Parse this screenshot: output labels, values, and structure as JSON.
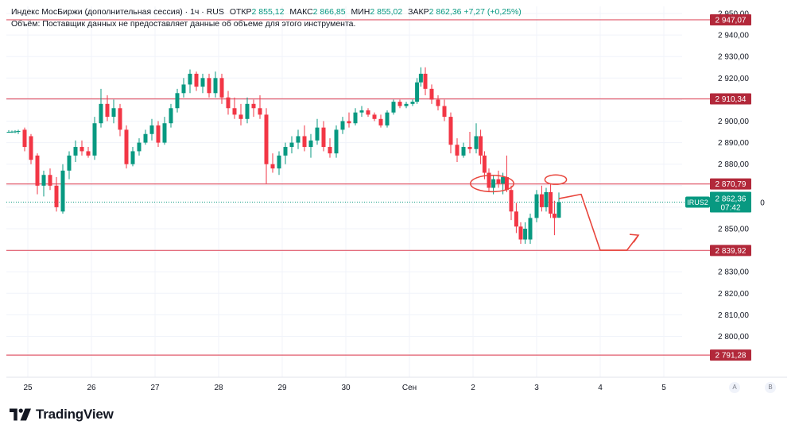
{
  "legend": {
    "title": "Индекс МосБиржи (дополнительная сессия) · 1ч · RUS",
    "open_label": "ОТКР",
    "open": "2 855,12",
    "high_label": "МАКС",
    "high": "2 866,85",
    "low_label": "МИН",
    "low": "2 855,02",
    "close_label": "ЗАКР",
    "close": "2 862,36",
    "change": "+7,27 (+0,25%)",
    "volume_note": "Объём: Поставщик данных не предоставляет данные об объеме для этого инструмента."
  },
  "current_price": {
    "symbol": "IRUS2",
    "value": "2 862,36",
    "countdown": "07:42",
    "extra": "0"
  },
  "brand": "TradingView",
  "scale_buttons": [
    "A",
    "B"
  ],
  "colors": {
    "up": "#089981",
    "down": "#f23645",
    "level_line": "#e05a6b",
    "level_badge": "#b2283a",
    "price_badge": "#089981"
  },
  "chart_data": {
    "type": "candlestick",
    "interval": "1h",
    "y_ticks": [
      2800,
      2810,
      2820,
      2830,
      2840,
      2850,
      2860,
      2870,
      2880,
      2890,
      2900,
      2910,
      2920,
      2930,
      2940,
      2950
    ],
    "y_tick_labels": [
      "2 800,00",
      "2 810,00",
      "2 820,00",
      "2 830,00",
      "2 840,00",
      "2 850,00",
      "2 860,00",
      "2 870,00",
      "2 880,00",
      "2 890,00",
      "2 900,00",
      "2 910,00",
      "2 920,00",
      "2 930,00",
      "2 940,00",
      "2 950,00"
    ],
    "x_ticks": [
      {
        "label": "25",
        "day": 0
      },
      {
        "label": "26",
        "day": 1
      },
      {
        "label": "27",
        "day": 2
      },
      {
        "label": "28",
        "day": 3
      },
      {
        "label": "29",
        "day": 4
      },
      {
        "label": "30",
        "day": 5
      },
      {
        "label": "Сен",
        "day": 6
      },
      {
        "label": "2",
        "day": 7
      },
      {
        "label": "3",
        "day": 8
      },
      {
        "label": "4",
        "day": 9
      },
      {
        "label": "5",
        "day": 10
      }
    ],
    "levels": [
      {
        "value": 2947.07,
        "label": "2 947,07"
      },
      {
        "value": 2910.34,
        "label": "2 910,34"
      },
      {
        "value": 2870.79,
        "label": "2 870,79"
      },
      {
        "value": 2839.92,
        "label": "2 839,92"
      },
      {
        "value": 2791.28,
        "label": "2 791,28"
      }
    ],
    "current_value": 2862.36,
    "candles": [
      {
        "d": -0.3,
        "o": 2895.0,
        "h": 2895.8,
        "l": 2894.6,
        "c": 2895.0
      },
      {
        "d": -0.25,
        "o": 2895.0,
        "h": 2895.6,
        "l": 2894.5,
        "c": 2895.1
      },
      {
        "d": -0.2,
        "o": 2895.0,
        "h": 2895.8,
        "l": 2894.4,
        "c": 2895.2
      },
      {
        "d": -0.15,
        "o": 2895.2,
        "h": 2896.0,
        "l": 2894.0,
        "c": 2895.4
      },
      {
        "d": -0.05,
        "o": 2896.0,
        "h": 2897.0,
        "l": 2886.0,
        "c": 2888.0
      },
      {
        "d": 0.05,
        "o": 2893.0,
        "h": 2894.0,
        "l": 2880.0,
        "c": 2882.0
      },
      {
        "d": 0.15,
        "o": 2884.0,
        "h": 2885.0,
        "l": 2866.0,
        "c": 2870.0
      },
      {
        "d": 0.25,
        "o": 2870.0,
        "h": 2877.0,
        "l": 2865.0,
        "c": 2875.0
      },
      {
        "d": 0.35,
        "o": 2875.0,
        "h": 2878.0,
        "l": 2868.0,
        "c": 2870.0
      },
      {
        "d": 0.45,
        "o": 2870.0,
        "h": 2874.0,
        "l": 2858.0,
        "c": 2860.0
      },
      {
        "d": 0.55,
        "o": 2858.0,
        "h": 2880.0,
        "l": 2857.0,
        "c": 2877.0
      },
      {
        "d": 0.65,
        "o": 2877.0,
        "h": 2886.0,
        "l": 2873.0,
        "c": 2884.0
      },
      {
        "d": 0.75,
        "o": 2884.0,
        "h": 2891.0,
        "l": 2881.0,
        "c": 2888.0
      },
      {
        "d": 0.85,
        "o": 2888.0,
        "h": 2891.0,
        "l": 2884.0,
        "c": 2886.0
      },
      {
        "d": 0.95,
        "o": 2886.0,
        "h": 2888.0,
        "l": 2883.0,
        "c": 2884.0
      },
      {
        "d": 1.05,
        "o": 2884.0,
        "h": 2902.0,
        "l": 2882.0,
        "c": 2899.0
      },
      {
        "d": 1.15,
        "o": 2899.0,
        "h": 2915.0,
        "l": 2897.0,
        "c": 2908.0
      },
      {
        "d": 1.25,
        "o": 2908.0,
        "h": 2912.0,
        "l": 2900.0,
        "c": 2902.0
      },
      {
        "d": 1.35,
        "o": 2902.0,
        "h": 2910.0,
        "l": 2899.0,
        "c": 2906.0
      },
      {
        "d": 1.45,
        "o": 2906.0,
        "h": 2908.0,
        "l": 2893.0,
        "c": 2896.0
      },
      {
        "d": 1.55,
        "o": 2896.0,
        "h": 2898.0,
        "l": 2878.0,
        "c": 2880.0
      },
      {
        "d": 1.65,
        "o": 2880.0,
        "h": 2888.0,
        "l": 2879.0,
        "c": 2886.0
      },
      {
        "d": 1.75,
        "o": 2886.0,
        "h": 2892.0,
        "l": 2884.0,
        "c": 2890.0
      },
      {
        "d": 1.85,
        "o": 2890.0,
        "h": 2896.0,
        "l": 2889.0,
        "c": 2894.0
      },
      {
        "d": 1.95,
        "o": 2894.0,
        "h": 2901.0,
        "l": 2891.0,
        "c": 2898.0
      },
      {
        "d": 2.05,
        "o": 2898.0,
        "h": 2900.0,
        "l": 2888.0,
        "c": 2890.0
      },
      {
        "d": 2.15,
        "o": 2890.0,
        "h": 2902.0,
        "l": 2889.0,
        "c": 2899.0
      },
      {
        "d": 2.25,
        "o": 2899.0,
        "h": 2908.0,
        "l": 2897.0,
        "c": 2906.0
      },
      {
        "d": 2.35,
        "o": 2906.0,
        "h": 2915.0,
        "l": 2904.0,
        "c": 2913.0
      },
      {
        "d": 2.45,
        "o": 2913.0,
        "h": 2920.0,
        "l": 2911.0,
        "c": 2917.0
      },
      {
        "d": 2.55,
        "o": 2917.0,
        "h": 2924.0,
        "l": 2913.0,
        "c": 2922.0
      },
      {
        "d": 2.65,
        "o": 2922.0,
        "h": 2923.0,
        "l": 2914.0,
        "c": 2916.0
      },
      {
        "d": 2.75,
        "o": 2916.0,
        "h": 2922.0,
        "l": 2913.0,
        "c": 2920.0
      },
      {
        "d": 2.85,
        "o": 2920.0,
        "h": 2922.0,
        "l": 2911.0,
        "c": 2913.0
      },
      {
        "d": 2.95,
        "o": 2913.0,
        "h": 2923.0,
        "l": 2911.0,
        "c": 2920.0
      },
      {
        "d": 3.05,
        "o": 2920.0,
        "h": 2922.0,
        "l": 2908.0,
        "c": 2911.0
      },
      {
        "d": 3.15,
        "o": 2911.0,
        "h": 2914.0,
        "l": 2903.0,
        "c": 2906.0
      },
      {
        "d": 3.25,
        "o": 2906.0,
        "h": 2911.0,
        "l": 2901.0,
        "c": 2903.0
      },
      {
        "d": 3.35,
        "o": 2903.0,
        "h": 2908.0,
        "l": 2898.0,
        "c": 2901.0
      },
      {
        "d": 3.45,
        "o": 2901.0,
        "h": 2911.0,
        "l": 2899.0,
        "c": 2908.0
      },
      {
        "d": 3.55,
        "o": 2908.0,
        "h": 2910.0,
        "l": 2902.0,
        "c": 2906.0
      },
      {
        "d": 3.65,
        "o": 2906.0,
        "h": 2912.0,
        "l": 2901.0,
        "c": 2903.0
      },
      {
        "d": 3.75,
        "o": 2903.0,
        "h": 2906.0,
        "l": 2871.0,
        "c": 2880.0
      },
      {
        "d": 3.85,
        "o": 2880.0,
        "h": 2885.0,
        "l": 2876.0,
        "c": 2878.0
      },
      {
        "d": 3.95,
        "o": 2878.0,
        "h": 2886.0,
        "l": 2875.0,
        "c": 2884.0
      },
      {
        "d": 4.05,
        "o": 2884.0,
        "h": 2890.0,
        "l": 2880.0,
        "c": 2888.0
      },
      {
        "d": 4.15,
        "o": 2888.0,
        "h": 2893.0,
        "l": 2885.0,
        "c": 2890.0
      },
      {
        "d": 4.25,
        "o": 2890.0,
        "h": 2896.0,
        "l": 2887.0,
        "c": 2893.0
      },
      {
        "d": 4.35,
        "o": 2893.0,
        "h": 2898.0,
        "l": 2886.0,
        "c": 2888.0
      },
      {
        "d": 4.45,
        "o": 2888.0,
        "h": 2894.0,
        "l": 2883.0,
        "c": 2891.0
      },
      {
        "d": 4.55,
        "o": 2891.0,
        "h": 2901.0,
        "l": 2889.0,
        "c": 2897.0
      },
      {
        "d": 4.65,
        "o": 2897.0,
        "h": 2900.0,
        "l": 2886.0,
        "c": 2888.0
      },
      {
        "d": 4.75,
        "o": 2888.0,
        "h": 2892.0,
        "l": 2883.0,
        "c": 2885.0
      },
      {
        "d": 4.85,
        "o": 2885.0,
        "h": 2898.0,
        "l": 2883.0,
        "c": 2896.0
      },
      {
        "d": 4.95,
        "o": 2896.0,
        "h": 2902.0,
        "l": 2894.0,
        "c": 2900.0
      },
      {
        "d": 5.05,
        "o": 2900.0,
        "h": 2904.0,
        "l": 2897.0,
        "c": 2899.0
      },
      {
        "d": 5.15,
        "o": 2899.0,
        "h": 2906.0,
        "l": 2898.0,
        "c": 2904.0
      },
      {
        "d": 5.25,
        "o": 2904.0,
        "h": 2907.0,
        "l": 2902.0,
        "c": 2905.0
      },
      {
        "d": 5.35,
        "o": 2905.0,
        "h": 2906.0,
        "l": 2902.0,
        "c": 2903.0
      },
      {
        "d": 5.45,
        "o": 2903.0,
        "h": 2904.0,
        "l": 2900.0,
        "c": 2901.0
      },
      {
        "d": 5.55,
        "o": 2901.0,
        "h": 2903.0,
        "l": 2897.0,
        "c": 2898.0
      },
      {
        "d": 5.65,
        "o": 2898.0,
        "h": 2905.0,
        "l": 2897.0,
        "c": 2904.0
      },
      {
        "d": 5.75,
        "o": 2904.0,
        "h": 2910.0,
        "l": 2903.0,
        "c": 2909.0
      },
      {
        "d": 5.85,
        "o": 2909.0,
        "h": 2910.0,
        "l": 2906.0,
        "c": 2907.0
      },
      {
        "d": 5.95,
        "o": 2907.0,
        "h": 2909.0,
        "l": 2906.0,
        "c": 2908.0
      },
      {
        "d": 6.05,
        "o": 2908.0,
        "h": 2910.0,
        "l": 2907.0,
        "c": 2909.0
      },
      {
        "d": 6.12,
        "o": 2909.0,
        "h": 2920.0,
        "l": 2908.0,
        "c": 2918.0
      },
      {
        "d": 6.18,
        "o": 2918.0,
        "h": 2925.0,
        "l": 2916.0,
        "c": 2922.0
      },
      {
        "d": 6.25,
        "o": 2922.0,
        "h": 2925.0,
        "l": 2912.0,
        "c": 2915.0
      },
      {
        "d": 6.35,
        "o": 2915.0,
        "h": 2917.0,
        "l": 2908.0,
        "c": 2910.0
      },
      {
        "d": 6.45,
        "o": 2910.0,
        "h": 2912.0,
        "l": 2905.0,
        "c": 2907.0
      },
      {
        "d": 6.55,
        "o": 2907.0,
        "h": 2910.0,
        "l": 2900.0,
        "c": 2902.0
      },
      {
        "d": 6.65,
        "o": 2902.0,
        "h": 2904.0,
        "l": 2885.0,
        "c": 2889.0
      },
      {
        "d": 6.75,
        "o": 2889.0,
        "h": 2892.0,
        "l": 2881.0,
        "c": 2884.0
      },
      {
        "d": 6.85,
        "o": 2884.0,
        "h": 2890.0,
        "l": 2883.0,
        "c": 2888.0
      },
      {
        "d": 6.95,
        "o": 2888.0,
        "h": 2895.0,
        "l": 2885.0,
        "c": 2887.0
      },
      {
        "d": 7.05,
        "o": 2887.0,
        "h": 2899.0,
        "l": 2885.0,
        "c": 2893.0
      },
      {
        "d": 7.12,
        "o": 2893.0,
        "h": 2896.0,
        "l": 2880.0,
        "c": 2884.0
      },
      {
        "d": 7.18,
        "o": 2884.0,
        "h": 2886.0,
        "l": 2873.0,
        "c": 2876.0
      },
      {
        "d": 7.25,
        "o": 2876.0,
        "h": 2878.0,
        "l": 2867.0,
        "c": 2869.0
      },
      {
        "d": 7.32,
        "o": 2869.0,
        "h": 2875.0,
        "l": 2866.0,
        "c": 2873.0
      },
      {
        "d": 7.4,
        "o": 2873.0,
        "h": 2877.0,
        "l": 2869.0,
        "c": 2871.0
      },
      {
        "d": 7.47,
        "o": 2871.0,
        "h": 2876.0,
        "l": 2866.0,
        "c": 2874.0
      },
      {
        "d": 7.53,
        "o": 2874.0,
        "h": 2884.0,
        "l": 2867.0,
        "c": 2868.0
      },
      {
        "d": 7.6,
        "o": 2868.0,
        "h": 2870.0,
        "l": 2854.0,
        "c": 2858.0
      },
      {
        "d": 7.68,
        "o": 2858.0,
        "h": 2862.0,
        "l": 2848.0,
        "c": 2851.0
      },
      {
        "d": 7.75,
        "o": 2851.0,
        "h": 2853.0,
        "l": 2843.0,
        "c": 2845.0
      },
      {
        "d": 7.82,
        "o": 2845.0,
        "h": 2853.0,
        "l": 2843.0,
        "c": 2850.0
      },
      {
        "d": 7.9,
        "o": 2845.0,
        "h": 2857.0,
        "l": 2843.0,
        "c": 2855.0
      },
      {
        "d": 8.0,
        "o": 2855.0,
        "h": 2868.0,
        "l": 2853.0,
        "c": 2866.0
      },
      {
        "d": 8.08,
        "o": 2866.0,
        "h": 2870.0,
        "l": 2858.0,
        "c": 2860.0
      },
      {
        "d": 8.15,
        "o": 2860.0,
        "h": 2869.0,
        "l": 2858.0,
        "c": 2867.0
      },
      {
        "d": 8.22,
        "o": 2867.0,
        "h": 2871.0,
        "l": 2855.0,
        "c": 2857.0
      },
      {
        "d": 8.28,
        "o": 2857.0,
        "h": 2863.0,
        "l": 2847.0,
        "c": 2855.0
      },
      {
        "d": 8.35,
        "o": 2855.12,
        "h": 2866.85,
        "l": 2855.02,
        "c": 2862.36
      }
    ],
    "forecast_path": [
      {
        "d": 8.35,
        "v": 2864.0
      },
      {
        "d": 8.7,
        "v": 2866.0
      },
      {
        "d": 9.0,
        "v": 2840.0
      },
      {
        "d": 9.42,
        "v": 2840.0
      },
      {
        "d": 9.6,
        "v": 2847.0
      }
    ],
    "ellipses": [
      {
        "d": 7.3,
        "v": 2871.0,
        "rd": 0.34,
        "rv": 3.8
      },
      {
        "d": 8.3,
        "v": 2872.8,
        "rd": 0.17,
        "rv": 2.2
      }
    ]
  }
}
